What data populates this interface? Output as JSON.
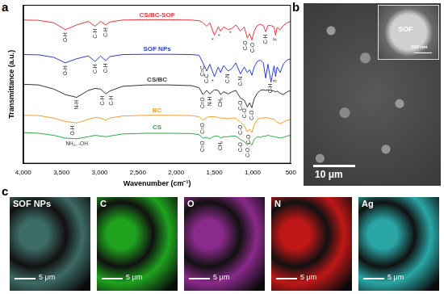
{
  "chart_data": {
    "panel": "a",
    "type": "line",
    "x_label": "Wavenumber (cm⁻¹)",
    "y_label": "Transmittance (a.u.)",
    "x": [
      4000,
      3800,
      3600,
      3450,
      3300,
      3150,
      3060,
      2990,
      2920,
      2870,
      2700,
      2400,
      2100,
      1800,
      1700,
      1650,
      1600,
      1560,
      1500,
      1450,
      1420,
      1380,
      1320,
      1270,
      1220,
      1160,
      1110,
      1070,
      1040,
      1010,
      980,
      940,
      900,
      860,
      830,
      800,
      760,
      720,
      700,
      680,
      640,
      600,
      550,
      500
    ],
    "series": [
      {
        "name": "CS/BC-SOF",
        "color": "#e8363f",
        "values": [
          9.4,
          9.38,
          9.2,
          8.7,
          9.05,
          9.3,
          8.95,
          9.3,
          9.05,
          9.25,
          9.4,
          9.42,
          9.42,
          9.4,
          9.35,
          9.2,
          8.95,
          9.2,
          8.3,
          8.9,
          8.6,
          8.9,
          8.7,
          8.8,
          9.05,
          8.6,
          8.9,
          8.1,
          8.4,
          7.95,
          8.6,
          9.0,
          9.1,
          9.0,
          8.55,
          9.0,
          9.0,
          8.9,
          8.3,
          8.85,
          8.7,
          9.0,
          9.2,
          9.3
        ]
      },
      {
        "name": "SOF NPs",
        "color": "#2a3fc9",
        "values": [
          6.9,
          6.88,
          6.7,
          6.3,
          6.6,
          6.8,
          6.4,
          6.8,
          6.45,
          6.75,
          6.9,
          6.92,
          6.92,
          6.9,
          6.85,
          6.3,
          5.7,
          6.2,
          5.3,
          6.0,
          5.6,
          6.1,
          5.7,
          5.9,
          6.3,
          5.5,
          6.0,
          5.6,
          5.8,
          5.4,
          6.0,
          6.4,
          6.5,
          6.3,
          5.2,
          6.2,
          4.9,
          6.1,
          5.3,
          6.0,
          5.6,
          6.2,
          6.5,
          6.6
        ]
      },
      {
        "name": "CS/BC",
        "color": "#333333",
        "values": [
          4.75,
          4.7,
          4.4,
          4.0,
          3.8,
          4.3,
          4.45,
          4.4,
          4.05,
          4.25,
          4.6,
          4.7,
          4.7,
          4.65,
          4.5,
          4.0,
          4.3,
          4.05,
          4.35,
          4.3,
          4.0,
          4.2,
          4.05,
          4.2,
          4.3,
          3.75,
          3.6,
          3.1,
          3.4,
          3.05,
          3.7,
          4.1,
          4.3,
          4.35,
          4.3,
          4.35,
          4.3,
          4.25,
          4.2,
          4.25,
          4.1,
          4.0,
          4.2,
          4.3
        ]
      },
      {
        "name": "BC",
        "color": "#f0a030",
        "values": [
          2.5,
          2.48,
          2.3,
          2.05,
          1.95,
          2.2,
          2.35,
          2.3,
          2.15,
          2.3,
          2.45,
          2.5,
          2.5,
          2.48,
          2.4,
          2.15,
          2.35,
          2.4,
          2.4,
          2.35,
          2.3,
          2.3,
          2.25,
          2.3,
          2.3,
          2.0,
          1.75,
          1.3,
          1.5,
          1.25,
          1.8,
          2.2,
          2.3,
          2.3,
          2.35,
          2.3,
          2.25,
          2.2,
          2.1,
          2.0,
          1.9,
          2.0,
          2.15,
          2.2
        ]
      },
      {
        "name": "CS",
        "color": "#2ea84a",
        "values": [
          1.25,
          1.2,
          1.05,
          0.85,
          0.8,
          0.95,
          1.05,
          1.0,
          0.95,
          1.0,
          1.15,
          1.2,
          1.2,
          1.18,
          1.1,
          0.85,
          0.9,
          0.8,
          1.0,
          1.0,
          0.85,
          0.95,
          0.95,
          1.0,
          1.0,
          0.75,
          0.6,
          0.35,
          0.5,
          0.35,
          0.75,
          0.95,
          0.9,
          1.0,
          1.0,
          1.05,
          1.0,
          0.95,
          0.95,
          0.9,
          0.85,
          0.9,
          1.0,
          1.05
        ]
      }
    ],
    "annotations": [
      {
        "text": "O-H",
        "x": 3450,
        "y": 8.5
      },
      {
        "text": "C-H",
        "x": 3060,
        "y": 8.75
      },
      {
        "text": "C-H",
        "x": 2920,
        "y": 8.85
      },
      {
        "text": "*",
        "x": 1500,
        "y": 8.1
      },
      {
        "text": "*",
        "x": 1420,
        "y": 8.4
      },
      {
        "text": "*",
        "x": 1270,
        "y": 8.6
      },
      {
        "text": "C-O",
        "x": 1090,
        "y": 7.9
      },
      {
        "text": "C-O",
        "x": 1000,
        "y": 7.75
      },
      {
        "text": "C-H",
        "x": 830,
        "y": 8.35
      },
      {
        "text": "#",
        "x": 700,
        "y": 8.1
      },
      {
        "text": "O-H",
        "x": 3450,
        "y": 6.1
      },
      {
        "text": "C-H",
        "x": 3060,
        "y": 6.2
      },
      {
        "text": "C-H",
        "x": 2920,
        "y": 6.25
      },
      {
        "text": "C=C",
        "x": 1650,
        "y": 6.1
      },
      {
        "text": "C-C",
        "x": 1600,
        "y": 5.5
      },
      {
        "text": "*",
        "x": 1500,
        "y": 5.1
      },
      {
        "text": "C-N",
        "x": 1320,
        "y": 5.5
      },
      {
        "text": "C-N",
        "x": 1160,
        "y": 5.3
      },
      {
        "text": "C-H",
        "x": 760,
        "y": 4.8
      },
      {
        "text": "#",
        "x": 700,
        "y": 5.1
      },
      {
        "text": "N-H",
        "x": 3300,
        "y": 3.6
      },
      {
        "text": "C-H",
        "x": 2960,
        "y": 3.9
      },
      {
        "text": "C-H",
        "x": 2850,
        "y": 3.9
      },
      {
        "text": "C=O",
        "x": 1650,
        "y": 3.8
      },
      {
        "text": "N-H",
        "x": 1560,
        "y": 3.85
      },
      {
        "text": "CH₂",
        "x": 1420,
        "y": 3.8
      },
      {
        "text": "C-O",
        "x": 1160,
        "y": 3.55
      },
      {
        "text": "C-O",
        "x": 1100,
        "y": 3.0
      },
      {
        "text": "C-O",
        "x": 1010,
        "y": 2.85
      },
      {
        "text": "O-H",
        "x": 3350,
        "y": 1.75
      },
      {
        "text": "C=O",
        "x": 1650,
        "y": 1.95
      },
      {
        "text": "C-O",
        "x": 1160,
        "y": 1.8
      },
      {
        "text": "C-O",
        "x": 1050,
        "y": 1.1
      },
      {
        "text": "NH₂, -OH",
        "x": 3300,
        "y": 0.6
      },
      {
        "text": "C=O",
        "x": 1650,
        "y": 0.65
      },
      {
        "text": "CH₂",
        "x": 1420,
        "y": 0.65
      },
      {
        "text": "C-O",
        "x": 1160,
        "y": 0.55
      },
      {
        "text": "C-O",
        "x": 1060,
        "y": 0.15
      }
    ],
    "xlim": [
      4000,
      500
    ],
    "xticks": [
      4000,
      3500,
      3000,
      2500,
      2000,
      1500,
      1000,
      500
    ],
    "ylim": [
      -1,
      10.5
    ],
    "grid": false,
    "tick_labels": "x"
  },
  "sem_image": {
    "panel": "b",
    "scale_bar": "10 μm",
    "inset": {
      "label": "SOF",
      "scale_bar": "500 nm"
    }
  },
  "eds_maps": {
    "panel": "c",
    "scale_bar": "5 μm",
    "maps": [
      {
        "label": "SOF NPs",
        "color": "#3d6b66"
      },
      {
        "label": "C",
        "color": "#1fa31f"
      },
      {
        "label": "O",
        "color": "#8a2a8a"
      },
      {
        "label": "N",
        "color": "#c01818"
      },
      {
        "label": "Ag",
        "color": "#2aa6a6"
      }
    ]
  }
}
